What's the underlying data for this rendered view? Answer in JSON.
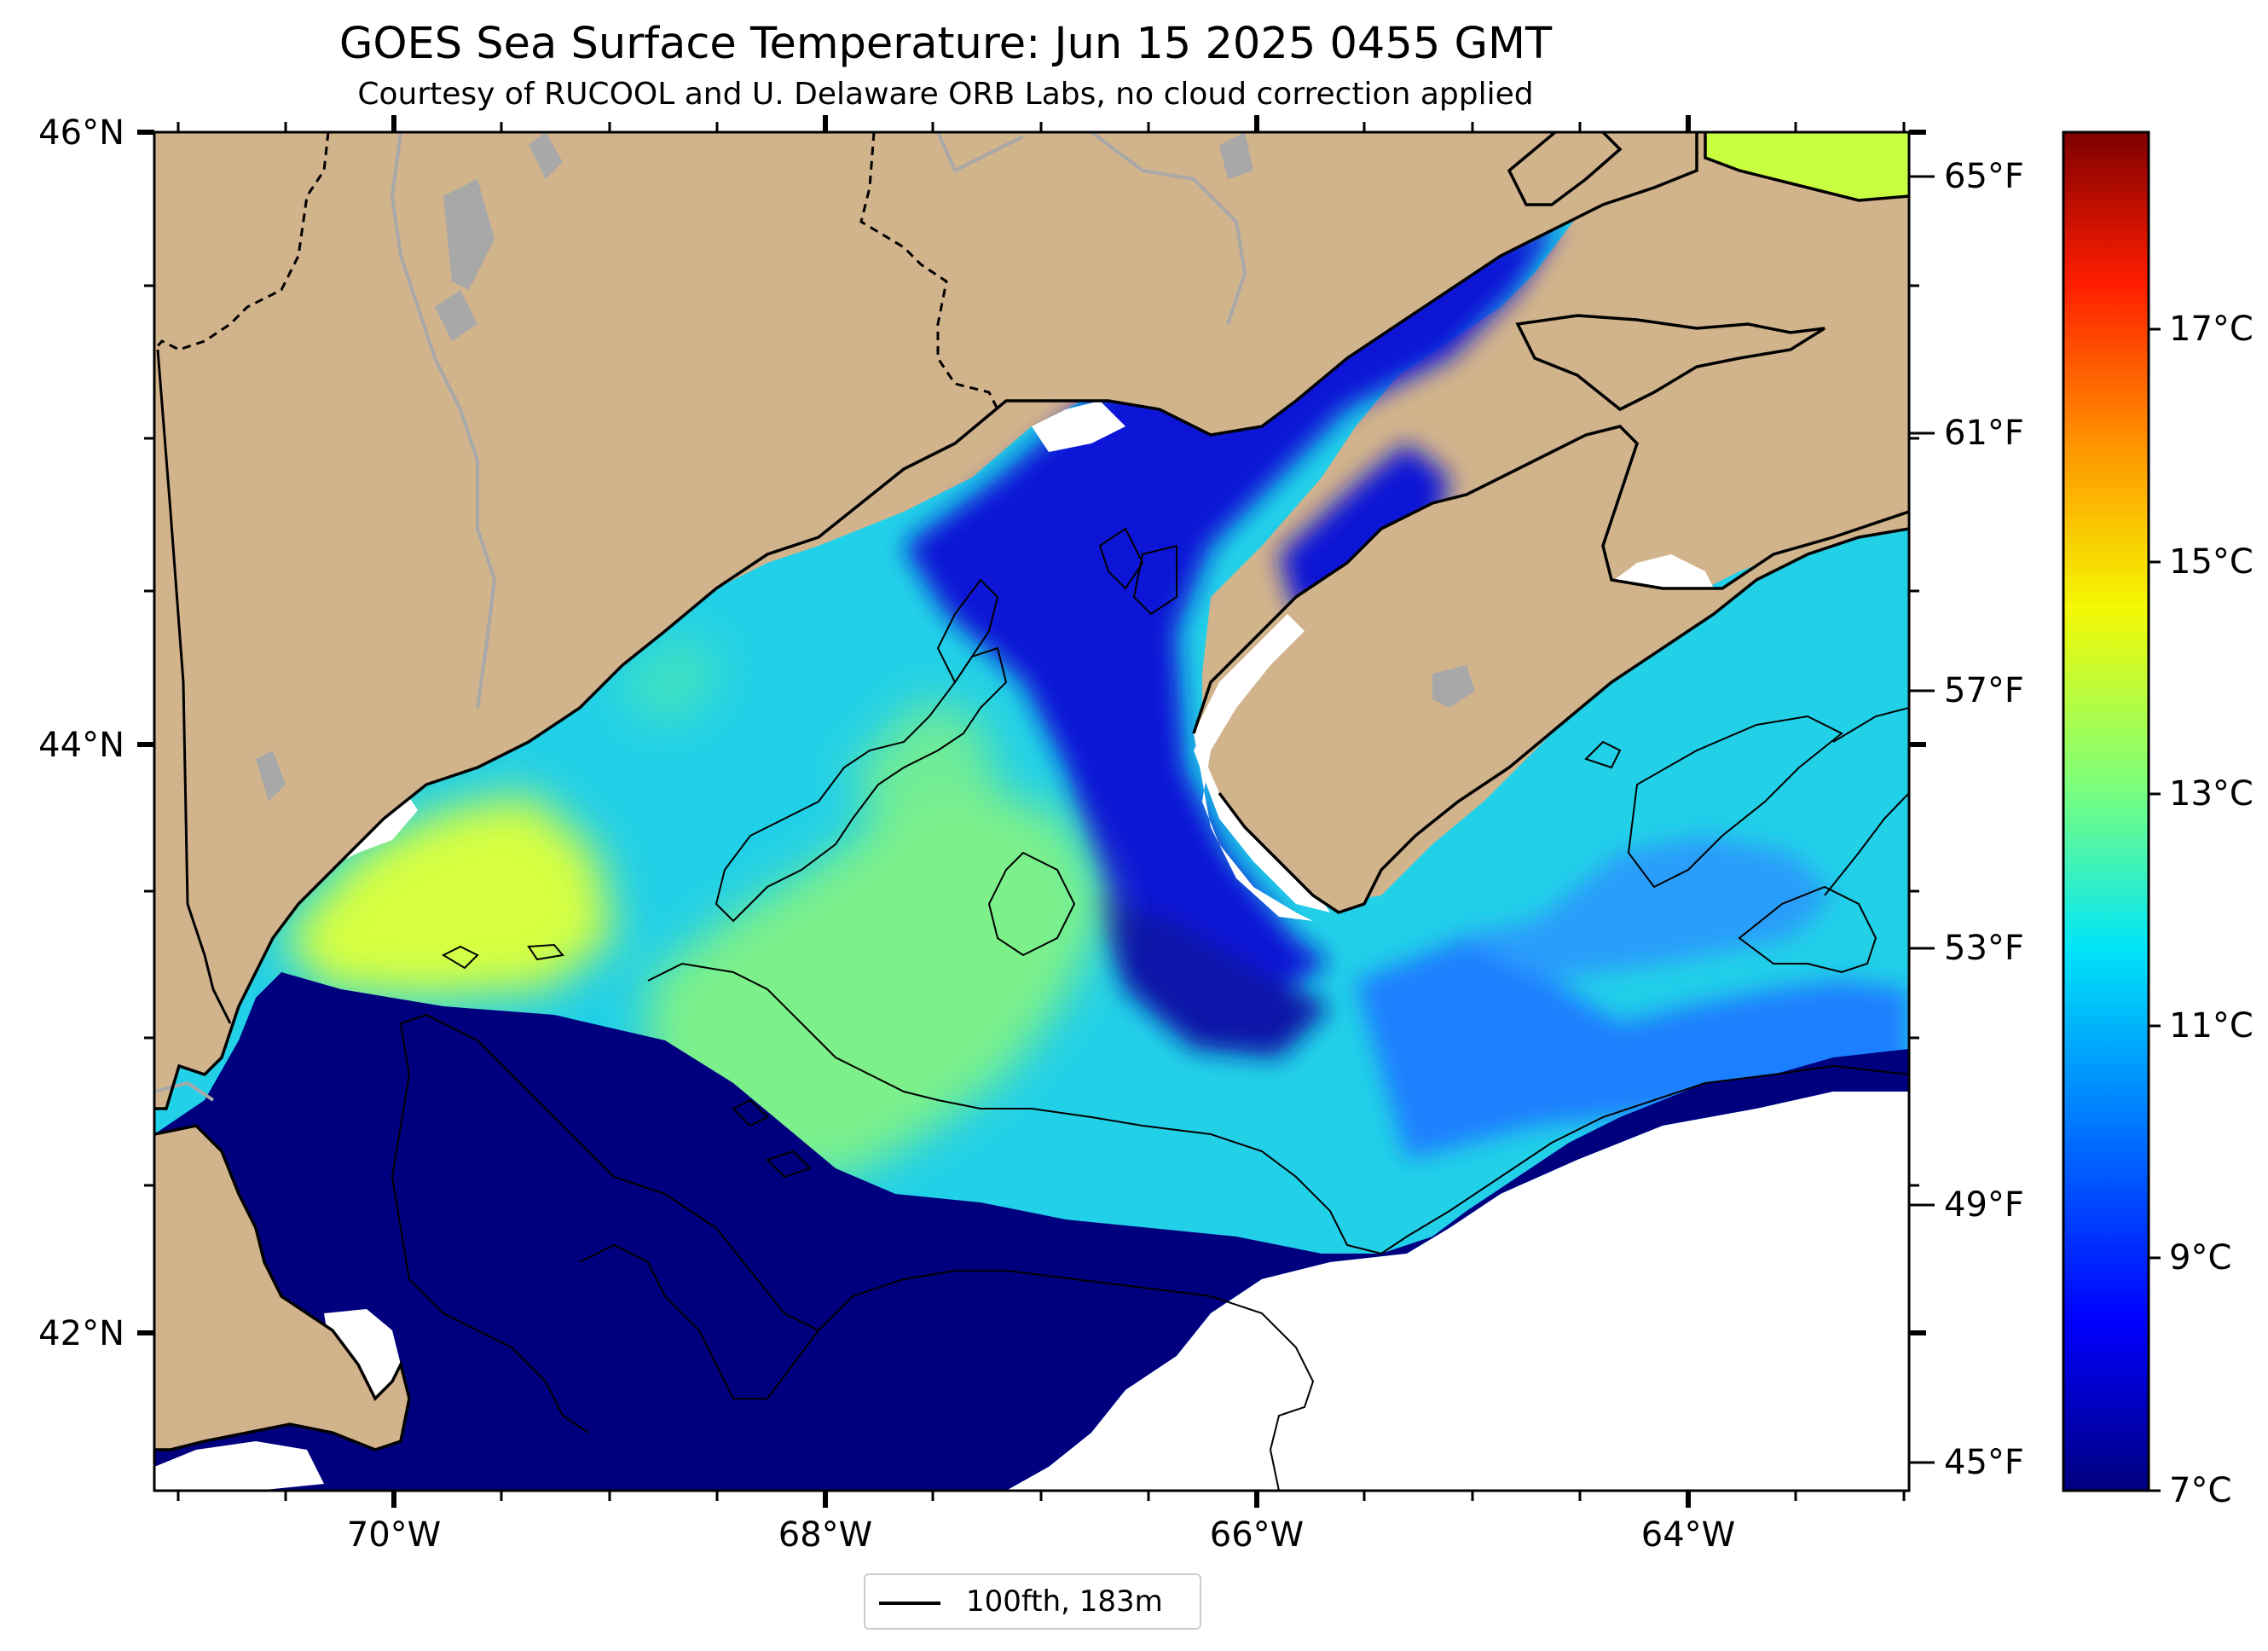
{
  "title": "GOES Sea Surface Temperature: Jun 15 2025 0455 GMT",
  "subtitle": "Courtesy of RUCOOL and U. Delaware ORB Labs, no cloud correction applied",
  "lat_labels": [
    "46°N",
    "44°N",
    "42°N"
  ],
  "lon_labels": [
    "70°W",
    "68°W",
    "66°W",
    "64°W"
  ],
  "fahrenheit_labels": [
    "65°F",
    "61°F",
    "57°F",
    "53°F",
    "49°F",
    "45°F"
  ],
  "celsius_labels": [
    "17°C",
    "15°C",
    "13°C",
    "11°C",
    "9°C",
    "7°C"
  ],
  "colorbar": {
    "min_c": 7,
    "max_c": 18.7,
    "colors": [
      "#00007f",
      "#0000ff",
      "#0080ff",
      "#00e5f7",
      "#7dff7a",
      "#f4f802",
      "#ff9400",
      "#ff1d00",
      "#7f0000"
    ]
  },
  "legend": {
    "label": "100fth, 183m"
  },
  "colors": {
    "land": "#d2b48c",
    "cold_water": "#00007f",
    "deep_blue": "#0a17d6",
    "mid_blue": "#1a7fff",
    "cyan": "#22d0e8",
    "green": "#7df08a",
    "yellow": "#e8ff35",
    "lake_gray": "#a8a8a8"
  }
}
